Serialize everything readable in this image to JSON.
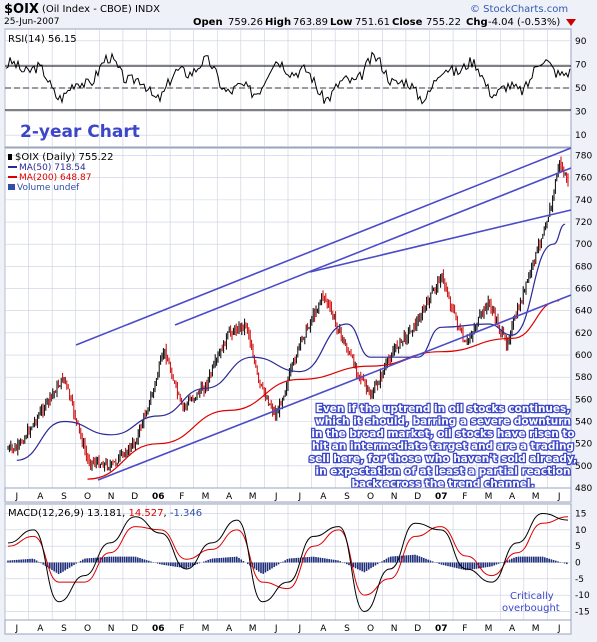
{
  "header": {
    "ticker": "$OIX",
    "name": "(Oil Index - CBOE)  INDX",
    "date": "25-Jun-2007",
    "open_label": "Open",
    "open": "759.26",
    "high_label": "High",
    "high": "763.89",
    "low_label": "Low",
    "low": "751.61",
    "close_label": "Close",
    "close": "755.22",
    "chg_label": "Chg",
    "chg": "-4.04 (-0.53%)",
    "logo": "© StockCharts.com"
  },
  "rsi_panel": {
    "label": "RSI(14) 56.15",
    "ticks": [
      "90",
      "70",
      "50",
      "30",
      "10"
    ]
  },
  "main_panel": {
    "title": "2-year Chart",
    "legend_price": "$OIX (Daily) 755.22",
    "legend_ma50": "MA(50) 718.54",
    "legend_ma200": "MA(200) 648.87",
    "legend_volume": "Volume undef",
    "y_ticks": [
      "780",
      "760",
      "740",
      "720",
      "700",
      "680",
      "660",
      "640",
      "620",
      "600",
      "580",
      "560",
      "540",
      "520",
      "500",
      "480"
    ],
    "annotation": [
      "Even if the uptrend in oil stocks continues,",
      "which it should, barring a severe downturn",
      "in the broad market, oil stocks have risen to",
      "hit an intermediate target and are a trading",
      "sell here, for those who haven't sold already,",
      "in expectation of at least a partial reaction",
      "back across the trend channel."
    ]
  },
  "x_axis": {
    "labels": [
      "J",
      "A",
      "S",
      "O",
      "N",
      "D",
      "06",
      "F",
      "M",
      "A",
      "M",
      "J",
      "J",
      "A",
      "S",
      "O",
      "N",
      "D",
      "07",
      "F",
      "M",
      "A",
      "M",
      "J"
    ]
  },
  "macd_panel": {
    "label_prefix": "MACD(12,26,9)",
    "macd": "13.181",
    "signal": "14.527",
    "hist": "-1.346",
    "ticks": [
      "15",
      "10",
      "5",
      "0",
      "-5",
      "-10",
      "-15"
    ],
    "annotation": [
      "Critically",
      "overbought"
    ]
  },
  "colors": {
    "panel_bg": "#ffffff",
    "outer_bg": "#eef1f8",
    "grid": "#c9cfe0",
    "price_up": "#000000",
    "price_down": "#cc0000",
    "ma50": "#2a2a9a",
    "ma200": "#dd0000",
    "channel": "#4b4bc8",
    "title_text": "#3b46c8",
    "annotation_text": "#ffffff",
    "macd_line": "#000000",
    "signal_line": "#dd0000",
    "histogram": "#1f2f7a"
  },
  "chart_data": {
    "type": "line",
    "y_range": [
      480,
      785
    ],
    "series": [
      {
        "name": "$OIX",
        "points": [
          [
            "2005-07",
            515
          ],
          [
            "2005-08",
            548
          ],
          [
            "2005-09",
            580
          ],
          [
            "2005-10",
            505
          ],
          [
            "2005-11",
            500
          ],
          [
            "2005-12",
            520
          ],
          [
            "2006-01",
            565
          ],
          [
            "2006-01",
            605
          ],
          [
            "2006-02",
            552
          ],
          [
            "2006-03",
            572
          ],
          [
            "2006-04",
            620
          ],
          [
            "2006-05",
            628
          ],
          [
            "2006-05",
            575
          ],
          [
            "2006-06",
            545
          ],
          [
            "2006-07",
            610
          ],
          [
            "2006-08",
            655
          ],
          [
            "2006-09",
            605
          ],
          [
            "2006-10",
            562
          ],
          [
            "2006-11",
            605
          ],
          [
            "2006-12",
            630
          ],
          [
            "2007-01",
            672
          ],
          [
            "2007-02",
            608
          ],
          [
            "2007-03",
            648
          ],
          [
            "2007-04",
            610
          ],
          [
            "2007-04",
            640
          ],
          [
            "2007-05",
            690
          ],
          [
            "2007-06",
            735
          ],
          [
            "2007-06",
            775
          ],
          [
            "2007-06",
            755
          ]
        ]
      },
      {
        "name": "MA(50)",
        "points": [
          [
            "2005-07",
            505
          ],
          [
            "2005-09",
            540
          ],
          [
            "2005-11",
            528
          ],
          [
            "2006-01",
            545
          ],
          [
            "2006-03",
            570
          ],
          [
            "2006-05",
            598
          ],
          [
            "2006-07",
            585
          ],
          [
            "2006-09",
            628
          ],
          [
            "2006-10",
            598
          ],
          [
            "2006-12",
            598
          ],
          [
            "2007-01",
            625
          ],
          [
            "2007-03",
            628
          ],
          [
            "2007-04",
            618
          ],
          [
            "2007-06",
            700
          ],
          [
            "2007-06",
            718
          ]
        ]
      },
      {
        "name": "MA(200)",
        "points": [
          [
            "2005-10",
            488
          ],
          [
            "2006-01",
            520
          ],
          [
            "2006-04",
            550
          ],
          [
            "2006-07",
            578
          ],
          [
            "2006-10",
            590
          ],
          [
            "2007-01",
            603
          ],
          [
            "2007-04",
            615
          ],
          [
            "2007-06",
            649
          ]
        ]
      }
    ],
    "macd": {
      "macd_values": [
        6,
        10,
        -12,
        -4,
        6,
        14,
        9,
        -2,
        6,
        13,
        -12,
        -6,
        8,
        11,
        -15,
        -2,
        12,
        10,
        -2,
        -6,
        6,
        15,
        13
      ],
      "signal_values": [
        5,
        8,
        -6,
        -6,
        3,
        11,
        10,
        1,
        4,
        10,
        -6,
        -8,
        5,
        10,
        -10,
        -5,
        8,
        11,
        2,
        -4,
        3,
        12,
        14
      ]
    }
  }
}
